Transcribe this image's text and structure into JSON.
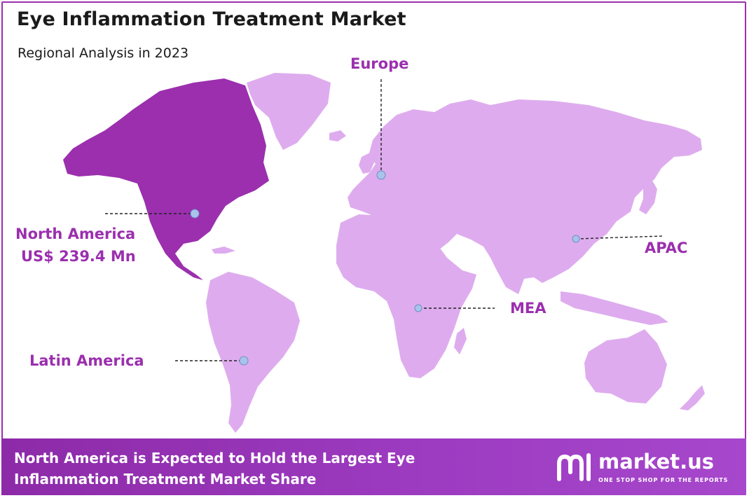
{
  "header": {
    "title": "Eye Inflammation Treatment Market",
    "subtitle": "Regional Analysis in 2023"
  },
  "regions": {
    "north_america": {
      "name": "North America",
      "value": "US$ 239.4 Mn"
    },
    "europe": {
      "name": "Europe"
    },
    "apac": {
      "name": "APAC"
    },
    "mea": {
      "name": "MEA"
    },
    "latin_america": {
      "name": "Latin America"
    }
  },
  "footer": {
    "line1": "North America is Expected to Hold the Largest Eye",
    "line2": "Inflammation Treatment Market Share"
  },
  "logo": {
    "word": "market.us",
    "tagline": "ONE STOP SHOP FOR THE REPORTS"
  },
  "colors": {
    "highlight": "#9b2fae",
    "land": "#deacee",
    "marker": "#a9c3ea",
    "border": "#9b2fae",
    "text": "#1a1a1a"
  }
}
